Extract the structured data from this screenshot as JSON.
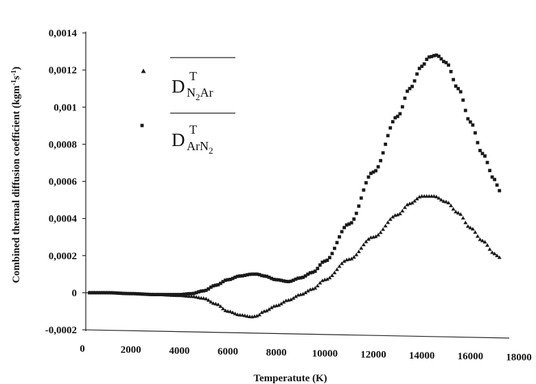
{
  "chart_data": {
    "type": "scatter",
    "title": "",
    "xlabel": "Temperatute (K)",
    "ylabel": "Combined thermal diffusion coefficient (kgm",
    "ylabel_unit_exp1": "-1",
    "ylabel_unit_mid": "s",
    "ylabel_unit_exp2": "-1",
    "ylabel_close": ")",
    "xlim": [
      0,
      18000
    ],
    "ylim": [
      -0.0002,
      0.0014
    ],
    "x_ticks": [
      "0",
      "2000",
      "4000",
      "6000",
      "8000",
      "10000",
      "12000",
      "14000",
      "16000",
      "18000"
    ],
    "x_tick_values": [
      0,
      2000,
      4000,
      6000,
      8000,
      10000,
      12000,
      14000,
      16000,
      18000
    ],
    "y_ticks": [
      "-0,0002",
      "0",
      "0,0002",
      "0,0004",
      "0,0006",
      "0,0008",
      "0,001",
      "0,0012",
      "0,0014"
    ],
    "y_tick_values": [
      -0.0002,
      0,
      0.0002,
      0.0004,
      0.0006,
      0.0008,
      0.001,
      0.0012,
      0.0014
    ],
    "grid": false,
    "legend_position": "top-left",
    "series": [
      {
        "name": "D_{N2Ar}^T",
        "legend_main": "D",
        "legend_sup": "T",
        "legend_sub": "N",
        "legend_sub2": "2",
        "legend_sub3": "Ar",
        "marker": "triangle",
        "color": "#1a1a1a",
        "x": [
          300,
          1000,
          2000,
          3000,
          4000,
          4500,
          5000,
          5500,
          6000,
          6500,
          7000,
          7200,
          7500,
          8000,
          8500,
          9000,
          9500,
          10000,
          11000,
          12000,
          13000,
          13500,
          14000,
          14500,
          15000,
          15500,
          16000,
          16500,
          17000,
          17200
        ],
        "y": [
          0,
          0,
          -5e-06,
          -1e-05,
          -1.5e-05,
          -2e-05,
          -3e-05,
          -6e-05,
          -0.0001,
          -0.00012,
          -0.00013,
          -0.000125,
          -0.0001,
          -7e-05,
          -4e-05,
          -1e-05,
          2e-05,
          7e-05,
          0.00018,
          0.0003,
          0.00042,
          0.00048,
          0.00052,
          0.00052,
          0.00049,
          0.00043,
          0.00035,
          0.00028,
          0.00021,
          0.00019
        ]
      },
      {
        "name": "D_{ArN2}^T",
        "legend_main": "D",
        "legend_sup": "T",
        "legend_sub": "ArN",
        "legend_sub2": "2",
        "legend_sub3": "",
        "marker": "square",
        "color": "#1a1a1a",
        "x": [
          300,
          1000,
          2000,
          3000,
          4000,
          4500,
          5000,
          5500,
          6000,
          6500,
          7000,
          7200,
          7500,
          8000,
          8500,
          9000,
          9500,
          10000,
          11000,
          12000,
          13000,
          13500,
          14000,
          14300,
          14600,
          15000,
          15500,
          16000,
          16500,
          17000,
          17200
        ],
        "y": [
          0,
          0,
          -5e-06,
          -1e-05,
          -1e-05,
          -5e-06,
          1e-05,
          4e-05,
          7e-05,
          9e-05,
          0.0001,
          0.0001,
          9e-05,
          7e-05,
          6e-05,
          8e-05,
          0.00011,
          0.00017,
          0.00037,
          0.00065,
          0.00095,
          0.0011,
          0.00122,
          0.00127,
          0.00128,
          0.00124,
          0.0011,
          0.00092,
          0.00075,
          0.00061,
          0.00055
        ]
      }
    ]
  }
}
